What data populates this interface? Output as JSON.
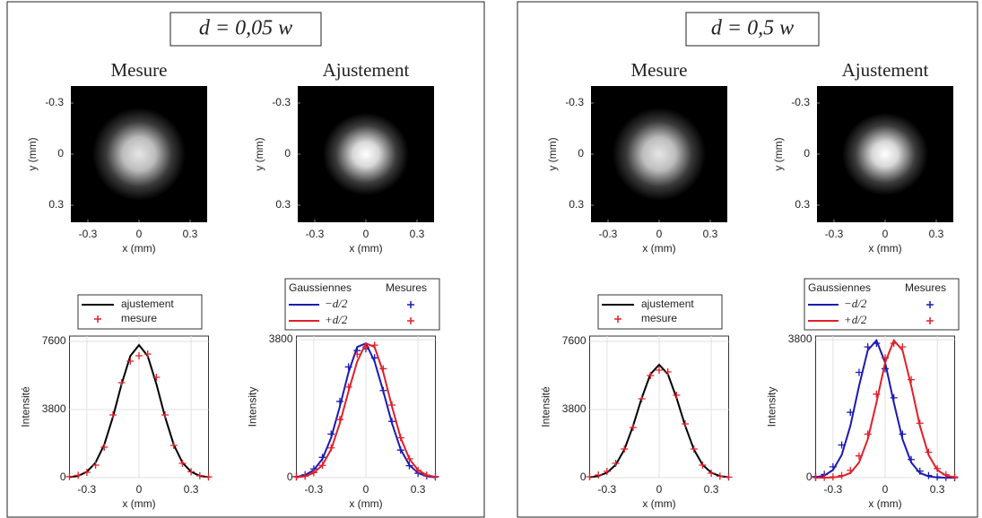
{
  "panels": [
    {
      "title": "d = 0,05 w"
    },
    {
      "title": "d = 0,5 w"
    }
  ],
  "chart_data": [
    {
      "type": "image",
      "title": "Mesure",
      "xlabel": "x (mm)",
      "ylabel": "y (mm)",
      "xlim": [
        -0.4,
        0.4
      ],
      "ylim": [
        -0.4,
        0.4
      ],
      "xticks": [
        -0.3,
        0,
        0.3
      ],
      "yticks": [
        -0.3,
        0,
        0.3
      ]
    },
    {
      "type": "image",
      "title": "Ajustement",
      "xlabel": "x (mm)",
      "ylabel": "y (mm)",
      "xlim": [
        -0.4,
        0.4
      ],
      "ylim": [
        -0.4,
        0.4
      ],
      "xticks": [
        -0.3,
        0,
        0.3
      ],
      "yticks": [
        -0.3,
        0,
        0.3
      ]
    },
    {
      "type": "line",
      "xlabel": "x (mm)",
      "ylabel": "Intensité",
      "xlim": [
        -0.4,
        0.4
      ],
      "ylim": [
        0,
        7900
      ],
      "xticks": [
        -0.3,
        0,
        0.3
      ],
      "yticks": [
        0,
        3800,
        7600
      ],
      "grid": true,
      "x": [
        -0.4,
        -0.35,
        -0.3,
        -0.25,
        -0.2,
        -0.15,
        -0.1,
        -0.05,
        0,
        0.05,
        0.1,
        0.15,
        0.2,
        0.25,
        0.3,
        0.35,
        0.4
      ],
      "series": [
        {
          "name": "ajustement",
          "color": "#000000",
          "values": [
            30,
            100,
            330,
            840,
            1840,
            3390,
            5230,
            6790,
            7400,
            6790,
            5230,
            3390,
            1840,
            840,
            330,
            100,
            30
          ]
        },
        {
          "name": "mesure",
          "color": "#e0202a",
          "marker": "+",
          "values": [
            60,
            130,
            300,
            700,
            1700,
            3500,
            5300,
            6500,
            6800,
            6900,
            5600,
            3500,
            1800,
            800,
            330,
            110,
            40
          ]
        }
      ]
    },
    {
      "type": "line",
      "xlabel": "x (mm)",
      "ylabel": "Intensity",
      "legend_titles": [
        "Gaussiennes",
        "Mesures"
      ],
      "xlim": [
        -0.4,
        0.4
      ],
      "ylim": [
        0,
        3900
      ],
      "xticks": [
        -0.3,
        0,
        0.3
      ],
      "yticks": [
        0,
        3800
      ],
      "grid": true,
      "x": [
        -0.4,
        -0.35,
        -0.3,
        -0.25,
        -0.2,
        -0.15,
        -0.1,
        -0.05,
        0,
        0.05,
        0.1,
        0.15,
        0.2,
        0.25,
        0.3,
        0.35,
        0.4
      ],
      "series": [
        {
          "name": "−d/2",
          "color": "#1a1ab4",
          "values": [
            20,
            70,
            210,
            520,
            1100,
            1960,
            2900,
            3600,
            3700,
            3200,
            2380,
            1500,
            780,
            350,
            130,
            40,
            10
          ],
          "measure_values": [
            30,
            80,
            240,
            560,
            1200,
            2100,
            3050,
            3500,
            3550,
            3300,
            2400,
            1550,
            760,
            330,
            120,
            50,
            20
          ]
        },
        {
          "name": "+d/2",
          "color": "#e0202a",
          "values": [
            10,
            40,
            130,
            350,
            780,
            1500,
            2380,
            3200,
            3700,
            3600,
            2900,
            1960,
            1100,
            520,
            210,
            70,
            20
          ],
          "measure_values": [
            20,
            40,
            140,
            340,
            820,
            1600,
            2500,
            3400,
            3600,
            3650,
            3000,
            2000,
            1100,
            520,
            200,
            70,
            30
          ]
        }
      ]
    },
    {
      "type": "image",
      "title": "Mesure",
      "xlabel": "x (mm)",
      "ylabel": "y (mm)",
      "xlim": [
        -0.4,
        0.4
      ],
      "ylim": [
        -0.4,
        0.4
      ],
      "xticks": [
        -0.3,
        0,
        0.3
      ],
      "yticks": [
        -0.3,
        0,
        0.3
      ]
    },
    {
      "type": "image",
      "title": "Ajustement",
      "xlabel": "x (mm)",
      "ylabel": "y (mm)",
      "xlim": [
        -0.4,
        0.4
      ],
      "ylim": [
        -0.4,
        0.4
      ],
      "xticks": [
        -0.3,
        0,
        0.3
      ],
      "yticks": [
        -0.3,
        0,
        0.3
      ]
    },
    {
      "type": "line",
      "xlabel": "x (mm)",
      "ylabel": "Intensité",
      "xlim": [
        -0.4,
        0.4
      ],
      "ylim": [
        0,
        7900
      ],
      "xticks": [
        -0.3,
        0,
        0.3
      ],
      "yticks": [
        0,
        3800,
        7600
      ],
      "grid": true,
      "x": [
        -0.4,
        -0.35,
        -0.3,
        -0.25,
        -0.2,
        -0.15,
        -0.1,
        -0.05,
        0,
        0.05,
        0.1,
        0.15,
        0.2,
        0.25,
        0.3,
        0.35,
        0.4
      ],
      "series": [
        {
          "name": "ajustement",
          "color": "#000000",
          "values": [
            25,
            90,
            280,
            720,
            1570,
            2890,
            4450,
            5780,
            6300,
            5780,
            4450,
            2890,
            1570,
            720,
            280,
            90,
            25
          ]
        },
        {
          "name": "mesure",
          "color": "#e0202a",
          "marker": "+",
          "values": [
            50,
            150,
            350,
            800,
            1600,
            2800,
            4400,
            5700,
            6000,
            5900,
            4600,
            3000,
            1600,
            700,
            250,
            80,
            30
          ]
        }
      ]
    },
    {
      "type": "line",
      "xlabel": "x (mm)",
      "ylabel": "Intensity",
      "legend_titles": [
        "Gaussiennes",
        "Mesures"
      ],
      "xlim": [
        -0.4,
        0.4
      ],
      "ylim": [
        0,
        3900
      ],
      "xticks": [
        -0.3,
        0,
        0.3
      ],
      "yticks": [
        0,
        3800
      ],
      "grid": true,
      "x": [
        -0.4,
        -0.35,
        -0.3,
        -0.25,
        -0.2,
        -0.15,
        -0.1,
        -0.05,
        0,
        0.05,
        0.1,
        0.15,
        0.2,
        0.25,
        0.3,
        0.35,
        0.4
      ],
      "series": [
        {
          "name": "−d/2",
          "color": "#1a1ab4",
          "values": [
            12,
            57,
            213,
            625,
            1430,
            2530,
            3510,
            3780,
            3170,
            2070,
            1060,
            420,
            130,
            35,
            6,
            1,
            0
          ],
          "measure_values": [
            30,
            90,
            300,
            900,
            1800,
            2900,
            3600,
            3700,
            3000,
            2200,
            1200,
            500,
            180,
            60,
            20,
            10,
            0
          ]
        },
        {
          "name": "+d/2",
          "color": "#e0202a",
          "values": [
            0,
            1,
            6,
            35,
            130,
            420,
            1060,
            2070,
            3170,
            3780,
            3510,
            2530,
            1430,
            625,
            213,
            57,
            12
          ],
          "measure_values": [
            0,
            10,
            20,
            60,
            200,
            600,
            1200,
            2300,
            3300,
            3700,
            3600,
            2700,
            1500,
            700,
            250,
            80,
            20
          ]
        }
      ]
    }
  ]
}
